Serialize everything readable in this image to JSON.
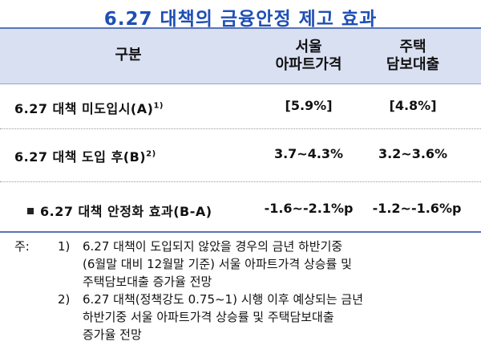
{
  "title": "6.27 대책의 금융안정 제고 효과",
  "header": {
    "gubun": "구분",
    "seoul_line1": "서울",
    "seoul_line2": "아파트가격",
    "jutaek_line1": "주택",
    "jutaek_line2": "담보대출"
  },
  "rows": [
    {
      "label": "6.27 대책 미도입시(A)",
      "sup": "1)",
      "seoul": "[5.9%]",
      "jutaek": "[4.8%]"
    },
    {
      "label": "6.27 대책 도입 후(B)",
      "sup": "2)",
      "seoul": "3.7~4.3%",
      "jutaek": "3.2~3.6%"
    },
    {
      "label": "6.27 대책 안정화 효과(B-A)",
      "sup": "",
      "seoul": "-1.6~-2.1%p",
      "jutaek": "-1.2~-1.6%p"
    }
  ],
  "notes": {
    "label": "주:",
    "items": [
      {
        "num": "1)",
        "lines": [
          "6.27 대책이 도입되지 않았을 경우의 금년 하반기중",
          "(6월말 대비 12월말 기준) 서울 아파트가격 상승률 및",
          "주택담보대출 증가율 전망"
        ]
      },
      {
        "num": "2)",
        "lines": [
          "6.27 대책(정책강도 0.75~1) 시행 이후 예상되는 금년",
          "하반기중 서울 아파트가격 상승률 및 주택담보대출",
          "증가율 전망"
        ]
      }
    ]
  }
}
